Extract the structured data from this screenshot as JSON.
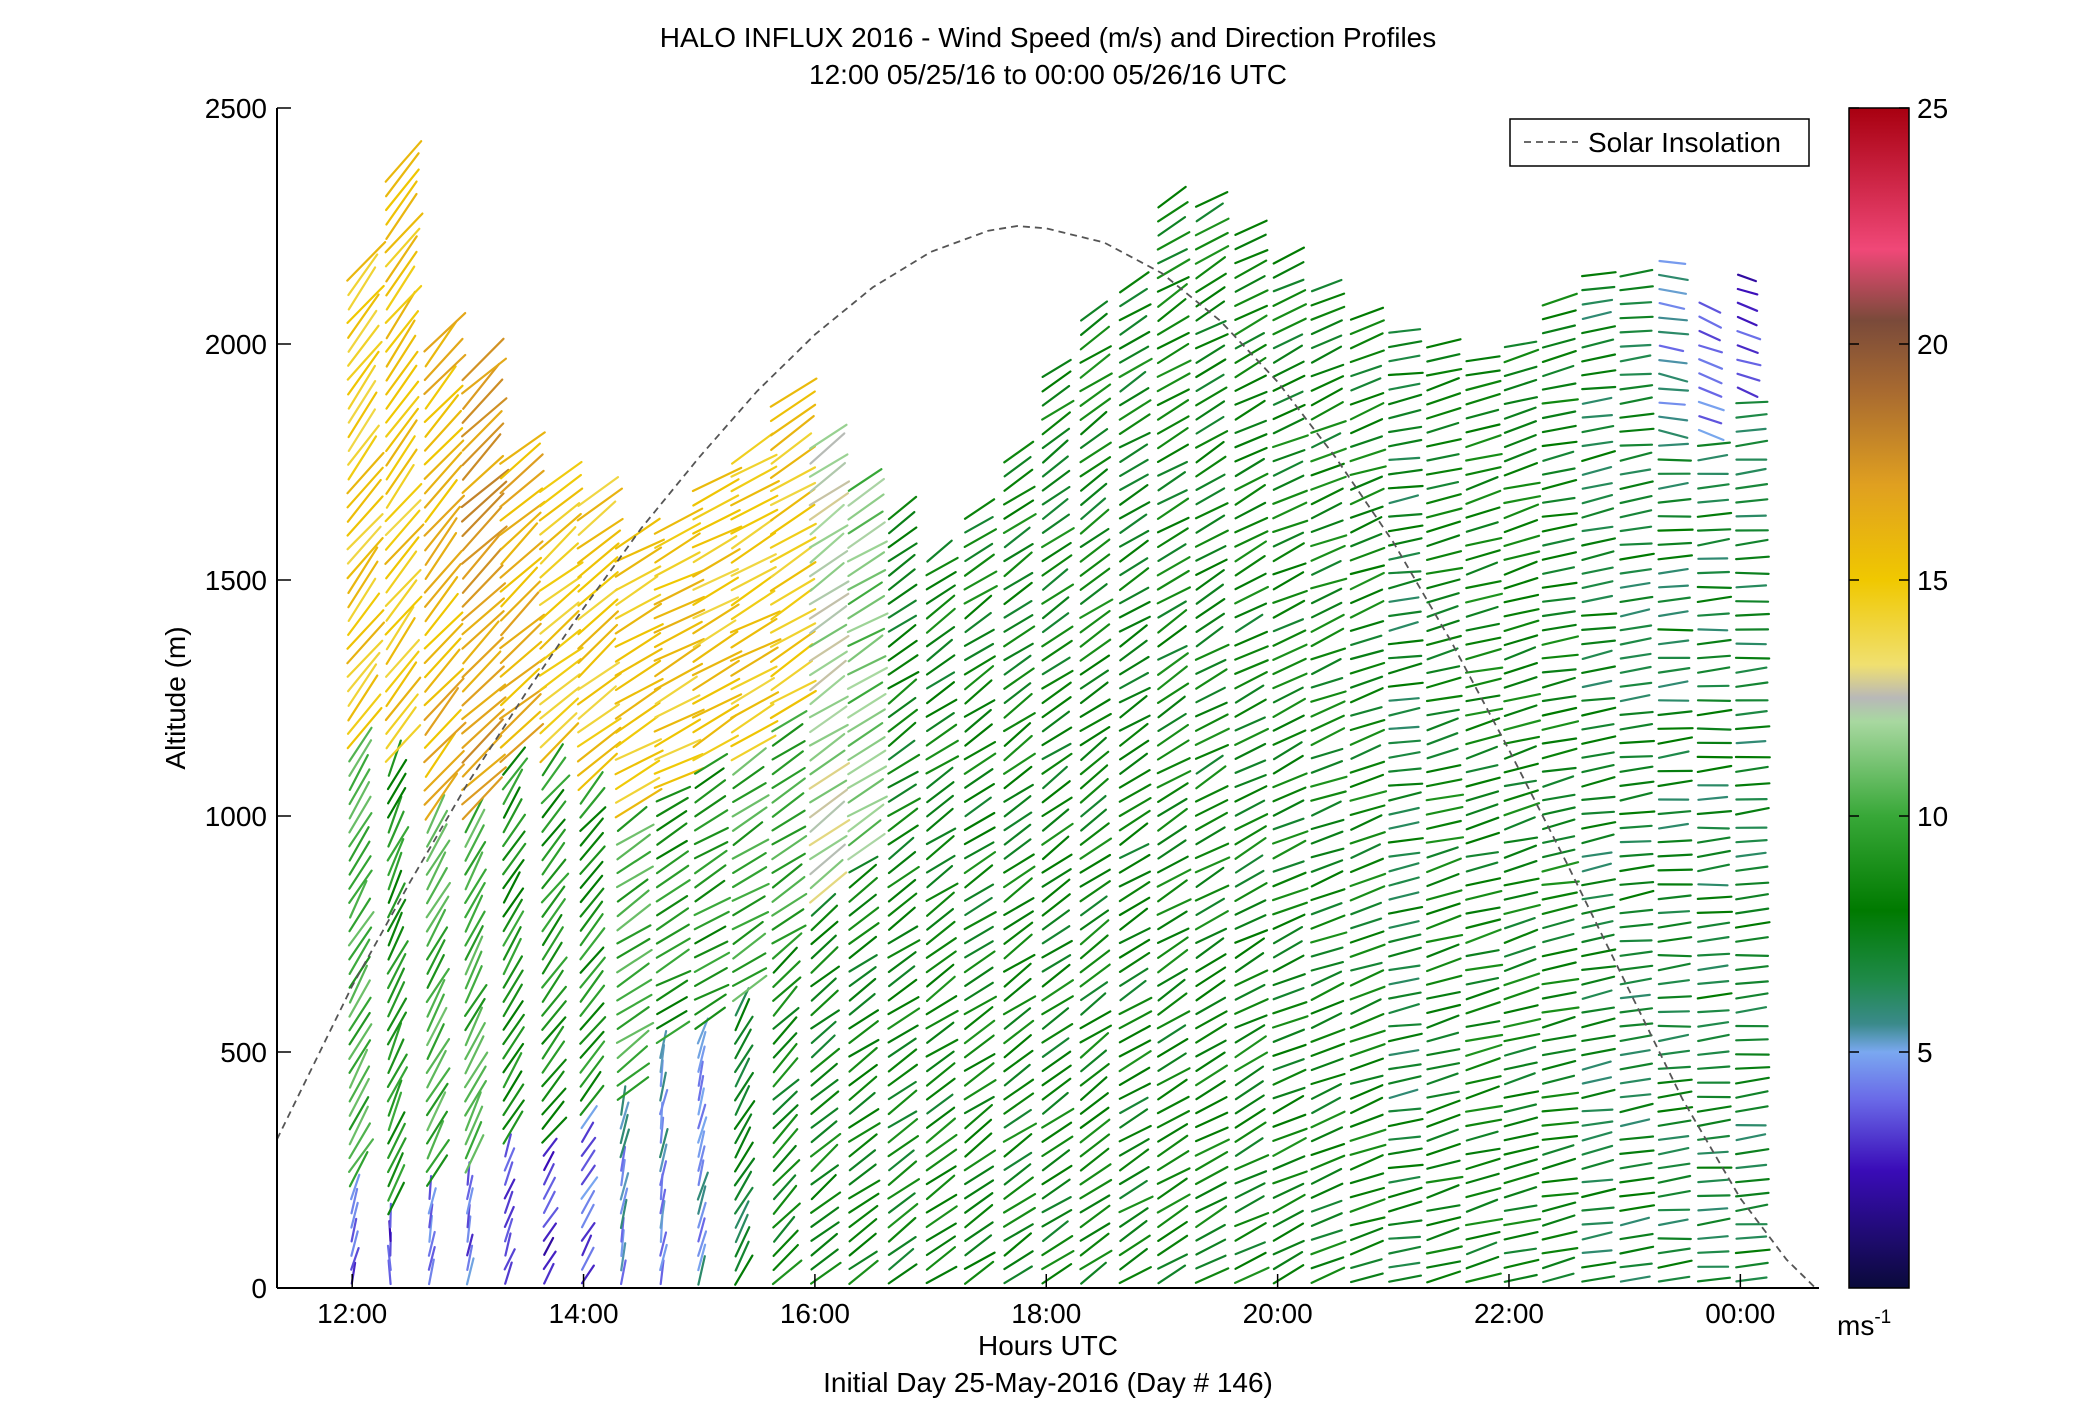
{
  "chart_data": {
    "type": "wind-barb-profile",
    "title": "HALO INFLUX 2016 - Wind Speed (m/s) and Direction Profiles",
    "subtitle": "12:00 05/25/16 to 00:00 05/26/16  UTC",
    "xlabel": "Hours UTC",
    "xlabel2": "Initial Day 25-May-2016 (Day # 146)",
    "ylabel": "Altitude (m)",
    "x_ticks": [
      "12:00",
      "14:00",
      "16:00",
      "18:00",
      "20:00",
      "22:00",
      "00:00"
    ],
    "x_tick_hours": [
      12,
      14,
      16,
      18,
      20,
      22,
      24
    ],
    "xlim_hours": [
      11.35,
      24.68
    ],
    "y_ticks": [
      0,
      500,
      1000,
      1500,
      2000,
      2500
    ],
    "ylim": [
      0,
      2500
    ],
    "legend": {
      "entries": [
        "Solar Insolation"
      ],
      "placement": "top-right",
      "line_style": "dashed",
      "line_color": "#555555"
    },
    "colorbar": {
      "ticks": [
        5,
        10,
        15,
        20,
        25
      ],
      "range": [
        0,
        25
      ],
      "unit_base": "ms",
      "unit_exp": "-1",
      "stops": [
        {
          "v": 0,
          "c": "#0a0a3a"
        },
        {
          "v": 2.5,
          "c": "#3a0cb8"
        },
        {
          "v": 4,
          "c": "#6a6ae8"
        },
        {
          "v": 5,
          "c": "#7aa8f0"
        },
        {
          "v": 5.6,
          "c": "#3a8a8a"
        },
        {
          "v": 6.5,
          "c": "#1f8a4a"
        },
        {
          "v": 8,
          "c": "#007a00"
        },
        {
          "v": 10,
          "c": "#38a838"
        },
        {
          "v": 12,
          "c": "#a8d8a0"
        },
        {
          "v": 12.5,
          "c": "#b8b8b8"
        },
        {
          "v": 13.2,
          "c": "#f0e070"
        },
        {
          "v": 15,
          "c": "#f0c800"
        },
        {
          "v": 17,
          "c": "#e0a020"
        },
        {
          "v": 19,
          "c": "#a86a30"
        },
        {
          "v": 20.5,
          "c": "#7a4a3a"
        },
        {
          "v": 22,
          "c": "#f04878"
        },
        {
          "v": 25,
          "c": "#a80010"
        }
      ]
    },
    "solar_insolation_curve": {
      "units": "m on altitude axis",
      "points": [
        [
          11.35,
          315
        ],
        [
          12.0,
          640
        ],
        [
          12.5,
          860
        ],
        [
          13.0,
          1070
        ],
        [
          13.5,
          1260
        ],
        [
          14.0,
          1440
        ],
        [
          14.5,
          1610
        ],
        [
          15.0,
          1760
        ],
        [
          15.5,
          1900
        ],
        [
          16.0,
          2020
        ],
        [
          16.5,
          2120
        ],
        [
          17.0,
          2195
        ],
        [
          17.5,
          2240
        ],
        [
          17.75,
          2250
        ],
        [
          18.0,
          2245
        ],
        [
          18.5,
          2215
        ],
        [
          19.0,
          2150
        ],
        [
          19.5,
          2050
        ],
        [
          20.0,
          1920
        ],
        [
          20.5,
          1760
        ],
        [
          21.0,
          1580
        ],
        [
          21.5,
          1370
        ],
        [
          22.0,
          1140
        ],
        [
          22.5,
          900
        ],
        [
          23.0,
          650
        ],
        [
          23.5,
          400
        ],
        [
          24.0,
          190
        ],
        [
          24.4,
          60
        ],
        [
          24.65,
          0
        ]
      ]
    },
    "wind_profiles": {
      "note": "Dense field of wind direction sticks; estimated per ~20-min profile. bottom/top in m, speed in m/s, dir as stick orientation in degrees.",
      "profiles": [
        {
          "t": 12.0,
          "bottom": 0,
          "top": 2170,
          "regimes": [
            [
              0,
              200,
              4,
              75
            ],
            [
              200,
              1150,
              10,
              60
            ],
            [
              1150,
              2170,
              15,
              52
            ]
          ]
        },
        {
          "t": 12.33,
          "bottom": 0,
          "top": 2370,
          "regimes": [
            [
              0,
              150,
              3,
              90
            ],
            [
              150,
              1100,
              9,
              65
            ],
            [
              1100,
              2370,
              15,
              52
            ]
          ]
        },
        {
          "t": 12.67,
          "bottom": 0,
          "top": 2000,
          "regimes": [
            [
              0,
              200,
              4,
              80
            ],
            [
              200,
              1000,
              10,
              62
            ],
            [
              1000,
              2000,
              16,
              50
            ]
          ]
        },
        {
          "t": 13.0,
          "bottom": 0,
          "top": 1960,
          "regimes": [
            [
              0,
              250,
              4,
              80
            ],
            [
              250,
              1000,
              10,
              62
            ],
            [
              1000,
              1960,
              17,
              45
            ]
          ]
        },
        {
          "t": 13.33,
          "bottom": 0,
          "top": 1780,
          "regimes": [
            [
              0,
              300,
              3,
              70
            ],
            [
              300,
              1100,
              9,
              58
            ],
            [
              1100,
              1780,
              16,
              42
            ]
          ]
        },
        {
          "t": 13.67,
          "bottom": 0,
          "top": 1700,
          "regimes": [
            [
              0,
              300,
              3,
              60
            ],
            [
              300,
              1100,
              9,
              52
            ],
            [
              1100,
              1700,
              15,
              40
            ]
          ]
        },
        {
          "t": 14.0,
          "bottom": 0,
          "top": 1690,
          "regimes": [
            [
              0,
              350,
              4,
              60
            ],
            [
              350,
              1050,
              9,
              50
            ],
            [
              1050,
              1690,
              15,
              40
            ]
          ]
        },
        {
          "t": 14.33,
          "bottom": 0,
          "top": 1600,
          "regimes": [
            [
              0,
              400,
              5,
              80
            ],
            [
              400,
              1000,
              10,
              35
            ],
            [
              1000,
              1600,
              15,
              30
            ]
          ]
        },
        {
          "t": 14.67,
          "bottom": 0,
          "top": 1620,
          "regimes": [
            [
              0,
              500,
              5,
              80
            ],
            [
              500,
              1050,
              9,
              30
            ],
            [
              1050,
              1620,
              15,
              28
            ]
          ]
        },
        {
          "t": 15.0,
          "bottom": 0,
          "top": 1700,
          "regimes": [
            [
              0,
              550,
              5,
              75
            ],
            [
              550,
              1100,
              9,
              30
            ],
            [
              1100,
              1700,
              15,
              30
            ]
          ]
        },
        {
          "t": 15.33,
          "bottom": 0,
          "top": 1760,
          "regimes": [
            [
              0,
              600,
              7,
              60
            ],
            [
              600,
              1100,
              10,
              32
            ],
            [
              1100,
              1760,
              15,
              30
            ]
          ]
        },
        {
          "t": 15.67,
          "bottom": 0,
          "top": 1900,
          "regimes": [
            [
              0,
              700,
              8,
              45
            ],
            [
              700,
              1200,
              10,
              35
            ],
            [
              1200,
              1900,
              15,
              32
            ]
          ]
        },
        {
          "t": 16.0,
          "bottom": 0,
          "top": 1800,
          "regimes": [
            [
              0,
              800,
              8,
              40
            ],
            [
              800,
              1800,
              12,
              35
            ]
          ]
        },
        {
          "t": 16.33,
          "bottom": 0,
          "top": 1700,
          "regimes": [
            [
              0,
              900,
              8,
              35
            ],
            [
              900,
              1700,
              11,
              32
            ]
          ]
        },
        {
          "t": 16.67,
          "bottom": 0,
          "top": 1640,
          "regimes": [
            [
              0,
              1640,
              8,
              35
            ]
          ]
        },
        {
          "t": 17.0,
          "bottom": 0,
          "top": 1560,
          "regimes": [
            [
              0,
              1560,
              8,
              35
            ]
          ]
        },
        {
          "t": 17.33,
          "bottom": 0,
          "top": 1650,
          "regimes": [
            [
              0,
              1650,
              8,
              35
            ]
          ]
        },
        {
          "t": 17.67,
          "bottom": 0,
          "top": 1780,
          "regimes": [
            [
              0,
              1780,
              8,
              35
            ]
          ]
        },
        {
          "t": 18.0,
          "bottom": 0,
          "top": 1960,
          "regimes": [
            [
              0,
              1960,
              8,
              35
            ]
          ]
        },
        {
          "t": 18.33,
          "bottom": 0,
          "top": 2080,
          "regimes": [
            [
              0,
              2080,
              8,
              35
            ]
          ]
        },
        {
          "t": 18.67,
          "bottom": 0,
          "top": 2140,
          "regimes": [
            [
              0,
              2140,
              8,
              32
            ]
          ]
        },
        {
          "t": 19.0,
          "bottom": 0,
          "top": 2300,
          "regimes": [
            [
              0,
              2300,
              8,
              32
            ]
          ]
        },
        {
          "t": 19.33,
          "bottom": 0,
          "top": 2320,
          "regimes": [
            [
              0,
              2320,
              8,
              30
            ]
          ]
        },
        {
          "t": 19.67,
          "bottom": 0,
          "top": 2240,
          "regimes": [
            [
              0,
              2240,
              8,
              28
            ]
          ]
        },
        {
          "t": 20.0,
          "bottom": 0,
          "top": 2180,
          "regimes": [
            [
              0,
              2180,
              8,
              25
            ]
          ]
        },
        {
          "t": 20.33,
          "bottom": 0,
          "top": 2120,
          "regimes": [
            [
              0,
              2120,
              8,
              22
            ]
          ]
        },
        {
          "t": 20.67,
          "bottom": 0,
          "top": 2060,
          "regimes": [
            [
              0,
              2060,
              8,
              20
            ]
          ]
        },
        {
          "t": 21.0,
          "bottom": 0,
          "top": 2050,
          "regimes": [
            [
              0,
              2050,
              7,
              10
            ]
          ]
        },
        {
          "t": 21.33,
          "bottom": 0,
          "top": 2000,
          "regimes": [
            [
              0,
              2000,
              8,
              15
            ]
          ]
        },
        {
          "t": 21.67,
          "bottom": 0,
          "top": 1980,
          "regimes": [
            [
              0,
              1980,
              8,
              15
            ]
          ]
        },
        {
          "t": 22.0,
          "bottom": 0,
          "top": 2020,
          "regimes": [
            [
              0,
              2020,
              8,
              15
            ]
          ]
        },
        {
          "t": 22.33,
          "bottom": 0,
          "top": 2100,
          "regimes": [
            [
              0,
              2100,
              8,
              12
            ]
          ]
        },
        {
          "t": 22.67,
          "bottom": 0,
          "top": 2160,
          "regimes": [
            [
              0,
              2160,
              7,
              10
            ]
          ]
        },
        {
          "t": 23.0,
          "bottom": 0,
          "top": 2160,
          "regimes": [
            [
              0,
              2160,
              7,
              8
            ]
          ]
        },
        {
          "t": 23.33,
          "bottom": 0,
          "top": 2200,
          "regimes": [
            [
              0,
              1800,
              7,
              5
            ],
            [
              1800,
              2200,
              5,
              350
            ]
          ]
        },
        {
          "t": 23.67,
          "bottom": 0,
          "top": 2100,
          "regimes": [
            [
              0,
              1800,
              7,
              5
            ],
            [
              1800,
              2100,
              4,
              340
            ]
          ]
        },
        {
          "t": 24.0,
          "bottom": 0,
          "top": 2170,
          "regimes": [
            [
              0,
              1900,
              7,
              5
            ],
            [
              1900,
              2170,
              3,
              340
            ]
          ]
        }
      ]
    }
  }
}
